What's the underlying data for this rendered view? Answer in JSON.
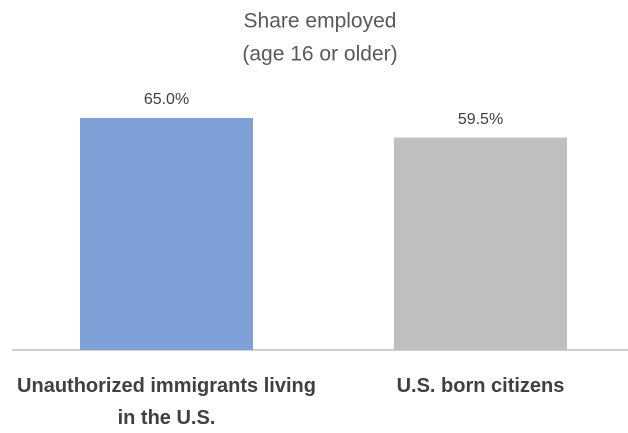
{
  "chart_data": {
    "type": "bar",
    "title": "Share employed",
    "subtitle": "(age 16 or older)",
    "categories": [
      "Unauthorized immigrants living in the U.S.",
      "U.S. born citizens"
    ],
    "values": [
      65.0,
      59.5
    ],
    "value_labels": [
      "65.0%",
      "59.5%"
    ],
    "colors": [
      "#7f9fd7",
      "#bfbfbf"
    ]
  }
}
